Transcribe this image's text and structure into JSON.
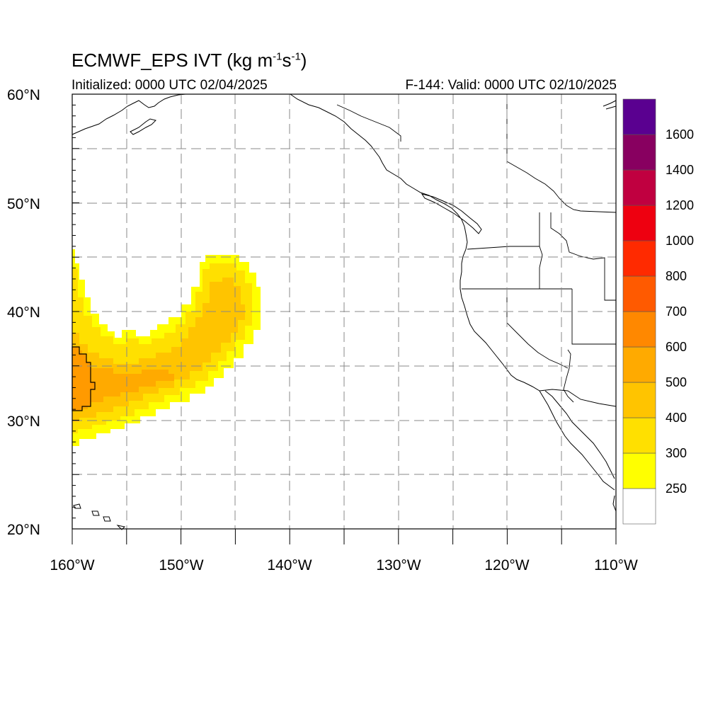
{
  "header": {
    "title_main": "ECMWF_EPS IVT (kg m",
    "title_sup1": "-1",
    "title_mid": "s",
    "title_sup2": "-1",
    "title_end": ")",
    "initialized": "Initialized: 0000 UTC 02/04/2025",
    "valid": "F-144: Valid: 0000 UTC 02/10/2025"
  },
  "map": {
    "lat_range": [
      20,
      60
    ],
    "lon_range": [
      -160,
      -110
    ],
    "lat_labels": [
      {
        "value": 60,
        "text": "60°N"
      },
      {
        "value": 50,
        "text": "50°N"
      },
      {
        "value": 40,
        "text": "40°N"
      },
      {
        "value": 30,
        "text": "30°N"
      },
      {
        "value": 20,
        "text": "20°N"
      }
    ],
    "lon_labels": [
      {
        "value": -160,
        "text": "160°W"
      },
      {
        "value": -150,
        "text": "150°W"
      },
      {
        "value": -140,
        "text": "140°W"
      },
      {
        "value": -130,
        "text": "130°W"
      },
      {
        "value": -120,
        "text": "120°W"
      },
      {
        "value": -110,
        "text": "110°W"
      }
    ],
    "grid_lat": [
      25,
      30,
      35,
      40,
      45,
      50,
      55
    ],
    "grid_lon": [
      -155,
      -150,
      -145,
      -140,
      -135,
      -130,
      -125,
      -120,
      -115
    ]
  },
  "colorbar": {
    "labels": [
      "250",
      "300",
      "400",
      "500",
      "600",
      "700",
      "800",
      "1000",
      "1200",
      "1400",
      "1600"
    ],
    "colors": [
      "#ffffff",
      "#ffff00",
      "#ffe000",
      "#ffc400",
      "#ffaa00",
      "#ff8800",
      "#ff5a00",
      "#ff2a00",
      "#ee0010",
      "#c00040",
      "#880060",
      "#5a0090"
    ]
  }
}
